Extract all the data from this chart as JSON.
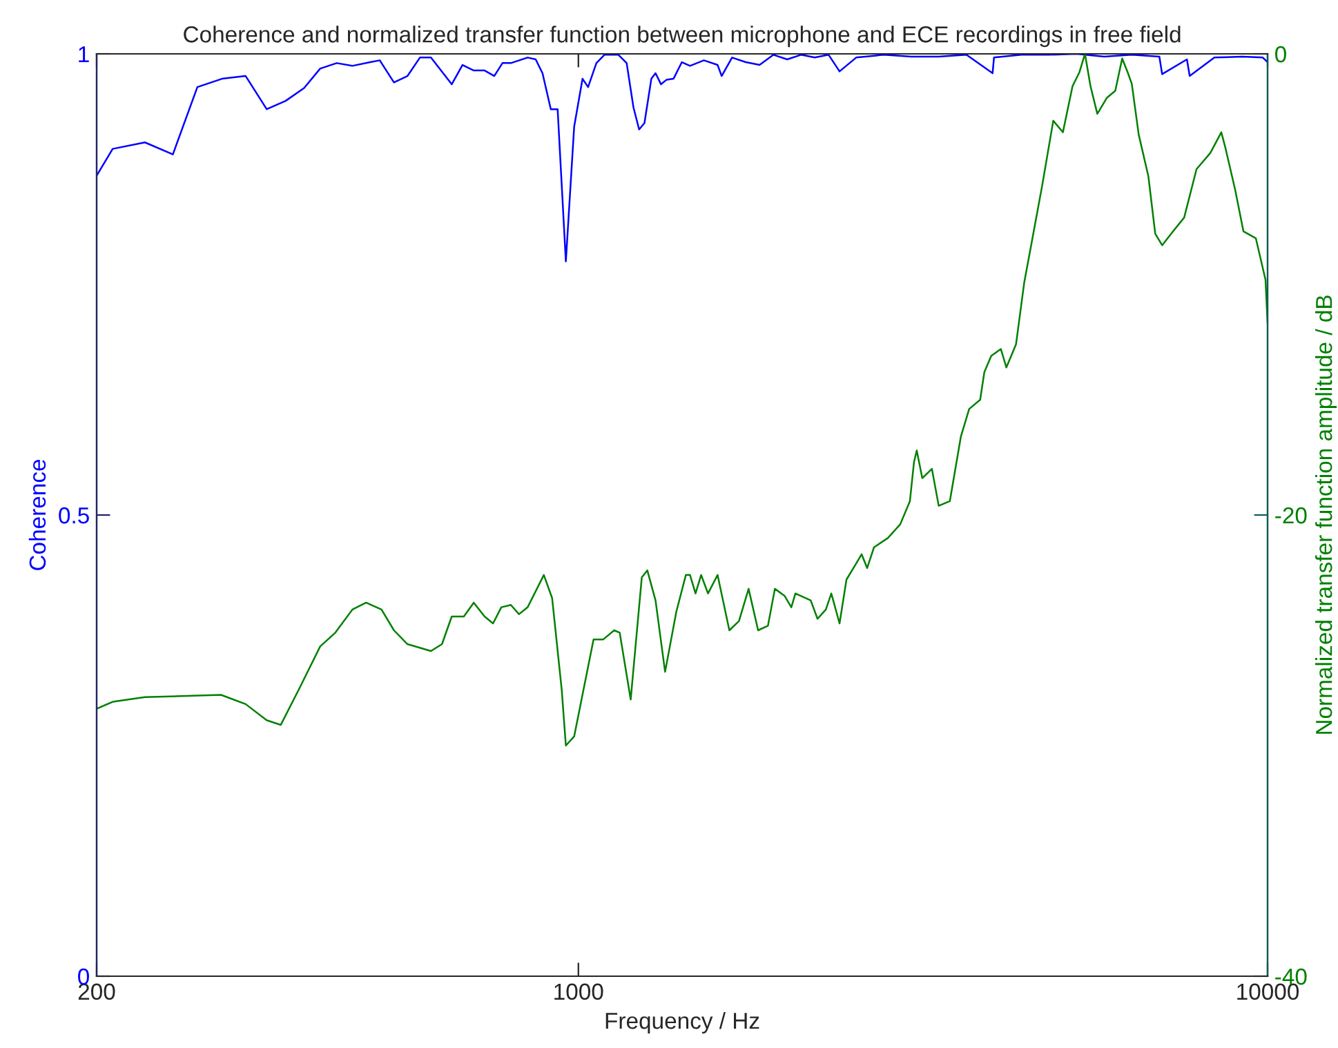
{
  "chart_data": {
    "type": "line",
    "title": "Coherence and normalized transfer function between microphone and ECE recordings in free field",
    "xlabel": "Frequency / Hz",
    "ylabel": "Coherence",
    "y2label": "Normalized transfer function amplitude / dB",
    "log": "x",
    "marker": "none",
    "line_style": "solid",
    "xlim": [
      200,
      10000
    ],
    "xticks": [
      200,
      1000,
      10000
    ],
    "ylim": [
      0,
      1
    ],
    "yticks": [
      0,
      0.5,
      1
    ],
    "y2lim": [
      -40,
      0
    ],
    "y2ticks": [
      -40,
      -20,
      0
    ],
    "series": [
      {
        "color": "#0000ff",
        "x": [
          200,
          211,
          235,
          258,
          280,
          304,
          329,
          353,
          376,
          400,
          422,
          446,
          470,
          499,
          515,
          540,
          565,
          589,
          611,
          655,
          679,
          705,
          731,
          755,
          776,
          798,
          844,
          867,
          887,
          912,
          933,
          959,
          986,
          1014,
          1033,
          1062,
          1091,
          1143,
          1175,
          1202,
          1225,
          1247,
          1276,
          1294,
          1318,
          1343,
          1374,
          1413,
          1452,
          1521,
          1592,
          1614,
          1671,
          1749,
          1832,
          1919,
          2009,
          2104,
          2203,
          2307,
          2393,
          2530,
          2773,
          3041,
          3333,
          3656,
          3990,
          4009,
          4395,
          4819,
          5284,
          5794,
          6353,
          6966,
          7031,
          7638,
          7709,
          8373,
          9183,
          9840,
          10000
        ],
        "values": [
          0.868,
          0.897,
          0.904,
          0.891,
          0.964,
          0.973,
          0.976,
          0.94,
          0.949,
          0.963,
          0.984,
          0.99,
          0.987,
          0.991,
          0.993,
          0.969,
          0.976,
          0.996,
          0.996,
          0.967,
          0.988,
          0.982,
          0.982,
          0.976,
          0.99,
          0.99,
          0.996,
          0.994,
          0.979,
          0.94,
          0.94,
          0.775,
          0.921,
          0.973,
          0.964,
          0.99,
          0.999,
          0.999,
          0.99,
          0.942,
          0.918,
          0.925,
          0.973,
          0.979,
          0.967,
          0.972,
          0.973,
          0.991,
          0.987,
          0.993,
          0.988,
          0.976,
          0.996,
          0.991,
          0.988,
          0.999,
          0.994,
          0.999,
          0.996,
          0.999,
          0.981,
          0.996,
          0.999,
          0.997,
          0.997,
          0.999,
          0.979,
          0.996,
          0.999,
          0.999,
          1.0,
          0.997,
          0.999,
          0.997,
          0.978,
          0.994,
          0.976,
          0.996,
          0.997,
          0.996,
          0.991
        ]
      },
      {
        "color": "#008000",
        "axis": "y2",
        "x": [
          200,
          211,
          235,
          303,
          329,
          353,
          370,
          394,
          422,
          444,
          470,
          492,
          518,
          540,
          565,
          611,
          634,
          655,
          682,
          705,
          731,
          752,
          773,
          798,
          820,
          844,
          891,
          916,
          946,
          959,
          986,
          1052,
          1086,
          1127,
          1148,
          1191,
          1236,
          1259,
          1294,
          1336,
          1387,
          1432,
          1452,
          1479,
          1507,
          1542,
          1592,
          1656,
          1710,
          1766,
          1823,
          1884,
          1928,
          1991,
          2037,
          2065,
          2173,
          2223,
          2286,
          2328,
          2393,
          2449,
          2530,
          2576,
          2624,
          2685,
          2812,
          2931,
          3027,
          3069,
          3097,
          3155,
          3258,
          3333,
          3459,
          3589,
          3690,
          3828,
          3882,
          3972,
          4102,
          4178,
          4315,
          4436,
          4539,
          4710,
          4887,
          5047,
          5212,
          5333,
          5433,
          5534,
          5662,
          5848,
          6012,
          6152,
          6266,
          6353,
          6501,
          6714,
          6871,
          7031,
          7290,
          7568,
          7887,
          8258,
          8568,
          8690,
          8974,
          9226,
          9616,
          9931,
          10000
        ],
        "values": [
          -28.4,
          -28.1,
          -27.9,
          -27.8,
          -28.2,
          -28.9,
          -29.1,
          -27.5,
          -25.7,
          -25.1,
          -24.1,
          -23.8,
          -24.1,
          -25.0,
          -25.6,
          -25.9,
          -25.6,
          -24.4,
          -24.4,
          -23.8,
          -24.4,
          -24.7,
          -24.0,
          -23.9,
          -24.3,
          -24.0,
          -22.6,
          -23.6,
          -27.6,
          -30.0,
          -29.6,
          -25.4,
          -25.4,
          -25.0,
          -25.1,
          -28.0,
          -22.7,
          -22.4,
          -23.7,
          -26.8,
          -24.2,
          -22.6,
          -22.6,
          -23.4,
          -22.6,
          -23.4,
          -22.6,
          -25.0,
          -24.6,
          -23.2,
          -25.0,
          -24.8,
          -23.2,
          -23.5,
          -24.0,
          -23.4,
          -23.7,
          -24.5,
          -24.1,
          -23.4,
          -24.7,
          -22.8,
          -22.1,
          -21.7,
          -22.3,
          -21.4,
          -21.0,
          -20.4,
          -19.4,
          -17.7,
          -17.2,
          -18.4,
          -18.0,
          -19.6,
          -19.4,
          -16.6,
          -15.4,
          -15.0,
          -13.8,
          -13.1,
          -12.8,
          -13.6,
          -12.6,
          -9.9,
          -8.3,
          -5.7,
          -2.9,
          -3.4,
          -1.4,
          -0.8,
          0,
          -1.4,
          -2.6,
          -1.9,
          -1.6,
          -0.2,
          -0.8,
          -1.3,
          -3.5,
          -5.3,
          -7.8,
          -8.3,
          -7.7,
          -7.1,
          -5.0,
          -4.3,
          -3.4,
          -4.1,
          -5.9,
          -7.7,
          -8.0,
          -9.8,
          -11.7
        ]
      }
    ]
  }
}
